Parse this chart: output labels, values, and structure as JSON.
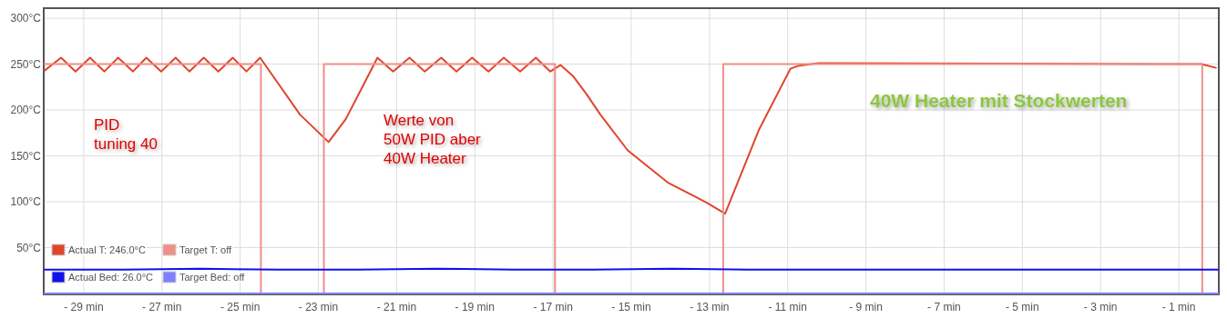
{
  "chart_data": {
    "type": "line",
    "xlim": [
      -30,
      0
    ],
    "ylim": [
      0,
      310
    ],
    "xticks": [
      {
        "value": -29,
        "label": "- 29 min"
      },
      {
        "value": -27,
        "label": "- 27 min"
      },
      {
        "value": -25,
        "label": "- 25 min"
      },
      {
        "value": -23,
        "label": "- 23 min"
      },
      {
        "value": -21,
        "label": "- 21 min"
      },
      {
        "value": -19,
        "label": "- 19 min"
      },
      {
        "value": -17,
        "label": "- 17 min"
      },
      {
        "value": -15,
        "label": "- 15 min"
      },
      {
        "value": -13,
        "label": "- 13 min"
      },
      {
        "value": -11,
        "label": "- 11 min"
      },
      {
        "value": -9,
        "label": "- 9 min"
      },
      {
        "value": -7,
        "label": "- 7 min"
      },
      {
        "value": -5,
        "label": "- 5 min"
      },
      {
        "value": -3,
        "label": "- 3 min"
      },
      {
        "value": -1,
        "label": "- 1 min"
      }
    ],
    "yticks": [
      {
        "value": 50,
        "label": "50°C"
      },
      {
        "value": 100,
        "label": "100°C"
      },
      {
        "value": 150,
        "label": "150°C"
      },
      {
        "value": 200,
        "label": "200°C"
      },
      {
        "value": 250,
        "label": "250°C"
      },
      {
        "value": 300,
        "label": "300°C"
      }
    ],
    "grid": true,
    "legend": "bottom left",
    "line_style": "solid",
    "marker": "none",
    "series": [
      {
        "name": "Actual T: 246.0°C",
        "color": "#e0452c",
        "x": [
          -30,
          -29.58,
          -29.21,
          -28.84,
          -28.47,
          -28.12,
          -27.74,
          -27.4,
          -27.02,
          -26.65,
          -26.3,
          -25.93,
          -25.56,
          -25.19,
          -24.84,
          -24.49,
          -23.47,
          -22.74,
          -22.3,
          -21.84,
          -21.49,
          -21.09,
          -20.67,
          -20.28,
          -19.86,
          -19.47,
          -19.07,
          -18.65,
          -18.26,
          -17.84,
          -17.44,
          -17.07,
          -16.81,
          -16.49,
          -16.14,
          -15.79,
          -15.09,
          -14.07,
          -13.07,
          -12.6,
          -11.74,
          -10.93,
          -10.74,
          -10.21,
          -0.42,
          -0.05
        ],
        "values": [
          243,
          257,
          242,
          257,
          242,
          257,
          242,
          257,
          242,
          257,
          242,
          257,
          242,
          257,
          242,
          257,
          195,
          165,
          190,
          228,
          257,
          242,
          257,
          242,
          257,
          242,
          257,
          242,
          257,
          242,
          257,
          242,
          249,
          237,
          217,
          195,
          156,
          121,
          99,
          87,
          178,
          245,
          248,
          251,
          250,
          246
        ]
      },
      {
        "name": "Target T: off",
        "color": "#ee8f88",
        "x": [
          -30,
          -24.47,
          -24.47,
          -22.86,
          -22.86,
          -16.95,
          -16.95,
          -12.65,
          -12.65,
          -0.4,
          -0.4,
          0
        ],
        "values": [
          250,
          250,
          0,
          0,
          250,
          250,
          0,
          0,
          250,
          250,
          0,
          0
        ]
      },
      {
        "name": "Actual Bed: 26.0°C",
        "color": "#1010ee",
        "x": [
          -30,
          -28,
          -26,
          -24,
          -22,
          -20,
          -18,
          -16,
          -14,
          -12,
          -10,
          -8,
          -6,
          -4,
          -2,
          0
        ],
        "values": [
          26,
          26,
          27,
          26,
          26,
          27,
          26,
          26,
          27,
          26,
          26,
          26,
          26,
          26,
          26,
          26
        ]
      },
      {
        "name": "Target Bed: off",
        "color": "#7f7fff",
        "x": [
          -30,
          0
        ],
        "values": [
          0,
          0
        ]
      }
    ],
    "annotations": [
      "PID\ntuning 40",
      "Werte von\n50W PID aber\n40W Heater",
      "40W Heater mit Stockwerten"
    ]
  }
}
